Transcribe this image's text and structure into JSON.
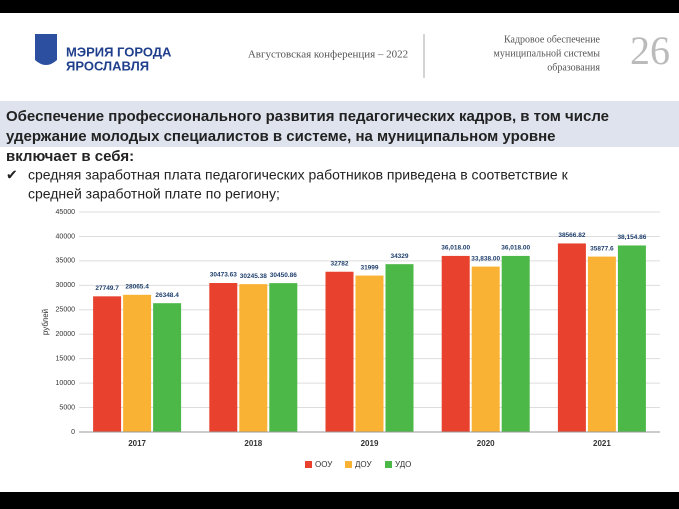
{
  "header": {
    "logo_text": [
      "МЭРИЯ ГОРОДА",
      "ЯРОСЛАВЛЯ"
    ],
    "conference": "Августовская конференция – 2022",
    "section": [
      "Кадровое обеспечение",
      "муниципальной системы",
      "образования"
    ],
    "page_number": "26"
  },
  "heading": [
    "Обеспечение профессионального развития педагогических кадров, в том числе",
    "удержание молодых специалистов в системе, на муниципальном уровне",
    "включает в себя:"
  ],
  "bullet": [
    "средняя заработная плата педагогических работников приведена в соответствие к",
    "средней заработной плате по региону;"
  ],
  "chart_data": {
    "type": "bar",
    "ylabel": "рублей",
    "categories": [
      "2017",
      "2018",
      "2019",
      "2020",
      "2021"
    ],
    "series": [
      {
        "name": "ООУ",
        "color": "#e8412d",
        "values": [
          27749.7,
          30473.63,
          32782,
          36018.0,
          38566.82
        ],
        "value_labels": [
          "27749.7",
          "30473.63",
          "32782",
          "36,018.00",
          "38566.82"
        ]
      },
      {
        "name": "ДОУ",
        "color": "#f9b233",
        "values": [
          28065.4,
          30245.38,
          31999,
          33838.0,
          35877.6
        ],
        "value_labels": [
          "28065.4",
          "30245.38",
          "31999",
          "33,838.00",
          "35877.6"
        ]
      },
      {
        "name": "УДО",
        "color": "#4cb848",
        "values": [
          26348.4,
          30450.86,
          34329,
          36018.0,
          38154.86
        ],
        "value_labels": [
          "26348.4",
          "30450.86",
          "34329",
          "36,018.00",
          "38,154.86"
        ]
      }
    ],
    "ylim": [
      0,
      45000
    ],
    "yticks": [
      0,
      5000,
      10000,
      15000,
      20000,
      25000,
      30000,
      35000,
      40000,
      45000
    ],
    "grid": true
  }
}
